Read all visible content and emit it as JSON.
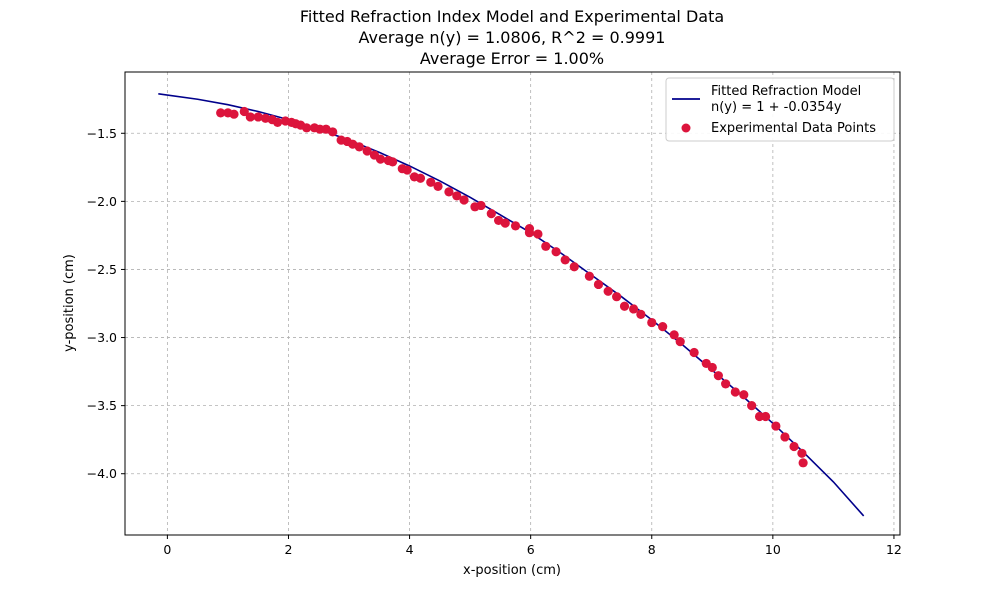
{
  "chart_data": {
    "type": "scatter",
    "title_lines": [
      "Fitted Refraction Index Model and Experimental Data",
      "Average n(y) = 1.0806, R^2 = 0.9991",
      "Average Error = 1.00%"
    ],
    "xlabel": "x-position (cm)",
    "ylabel": "y-position (cm)",
    "xlim": [
      -0.7,
      12.1
    ],
    "ylim": [
      -4.45,
      -1.05
    ],
    "xticks": [
      0,
      2,
      4,
      6,
      8,
      10,
      12
    ],
    "xtick_labels": [
      "0",
      "2",
      "4",
      "6",
      "8",
      "10",
      "12"
    ],
    "yticks": [
      -1.5,
      -2.0,
      -2.5,
      -3.0,
      -3.5,
      -4.0
    ],
    "ytick_labels": [
      "−1.5",
      "−2.0",
      "−2.5",
      "−3.0",
      "−3.5",
      "−4.0"
    ],
    "grid": true,
    "legend_position": "top-right",
    "colors": {
      "fit_line": "#00008b",
      "points": "#dc143c"
    },
    "fit": {
      "legend_lines": [
        "Fitted Refraction Model",
        "n(y) = 1 + -0.0354y"
      ],
      "x": [
        -0.15,
        0.5,
        1.0,
        1.5,
        2.0,
        2.5,
        3.0,
        3.5,
        4.0,
        4.5,
        5.0,
        5.5,
        6.0,
        6.5,
        7.0,
        7.5,
        8.0,
        8.5,
        9.0,
        9.5,
        10.0,
        10.5,
        11.0,
        11.5
      ],
      "y": [
        -1.21,
        -1.25,
        -1.29,
        -1.34,
        -1.4,
        -1.47,
        -1.55,
        -1.64,
        -1.74,
        -1.85,
        -1.97,
        -2.1,
        -2.23,
        -2.38,
        -2.54,
        -2.7,
        -2.87,
        -3.05,
        -3.24,
        -3.43,
        -3.63,
        -3.84,
        -4.06,
        -4.31
      ]
    },
    "points": {
      "legend_label": "Experimental Data Points",
      "x": [
        0.88,
        1.0,
        1.1,
        1.27,
        1.37,
        1.5,
        1.62,
        1.73,
        1.82,
        1.95,
        2.05,
        2.12,
        2.2,
        2.3,
        2.43,
        2.52,
        2.62,
        2.73,
        2.87,
        2.97,
        3.06,
        3.17,
        3.3,
        3.42,
        3.52,
        3.65,
        3.72,
        3.88,
        3.96,
        4.08,
        4.18,
        4.35,
        4.47,
        4.65,
        4.78,
        4.9,
        5.08,
        5.18,
        5.35,
        5.47,
        5.58,
        5.75,
        5.98,
        5.98,
        6.12,
        6.25,
        6.42,
        6.57,
        6.72,
        6.97,
        7.12,
        7.28,
        7.42,
        7.55,
        7.7,
        7.82,
        8.0,
        8.18,
        8.37,
        8.47,
        8.7,
        8.9,
        9.0,
        9.1,
        9.22,
        9.38,
        9.52,
        9.65,
        9.78,
        9.88,
        10.05,
        10.2,
        10.35,
        10.48,
        10.5
      ],
      "y": [
        -1.35,
        -1.35,
        -1.36,
        -1.34,
        -1.38,
        -1.38,
        -1.39,
        -1.4,
        -1.42,
        -1.41,
        -1.42,
        -1.43,
        -1.44,
        -1.46,
        -1.46,
        -1.47,
        -1.47,
        -1.49,
        -1.55,
        -1.56,
        -1.58,
        -1.6,
        -1.63,
        -1.66,
        -1.69,
        -1.7,
        -1.71,
        -1.76,
        -1.77,
        -1.82,
        -1.83,
        -1.86,
        -1.89,
        -1.93,
        -1.96,
        -1.99,
        -2.04,
        -2.03,
        -2.09,
        -2.14,
        -2.16,
        -2.18,
        -2.2,
        -2.23,
        -2.24,
        -2.33,
        -2.37,
        -2.43,
        -2.48,
        -2.55,
        -2.61,
        -2.66,
        -2.7,
        -2.77,
        -2.79,
        -2.83,
        -2.89,
        -2.92,
        -2.98,
        -3.03,
        -3.11,
        -3.19,
        -3.22,
        -3.28,
        -3.34,
        -3.4,
        -3.42,
        -3.5,
        -3.58,
        -3.58,
        -3.65,
        -3.73,
        -3.8,
        -3.85,
        -3.92
      ]
    }
  }
}
